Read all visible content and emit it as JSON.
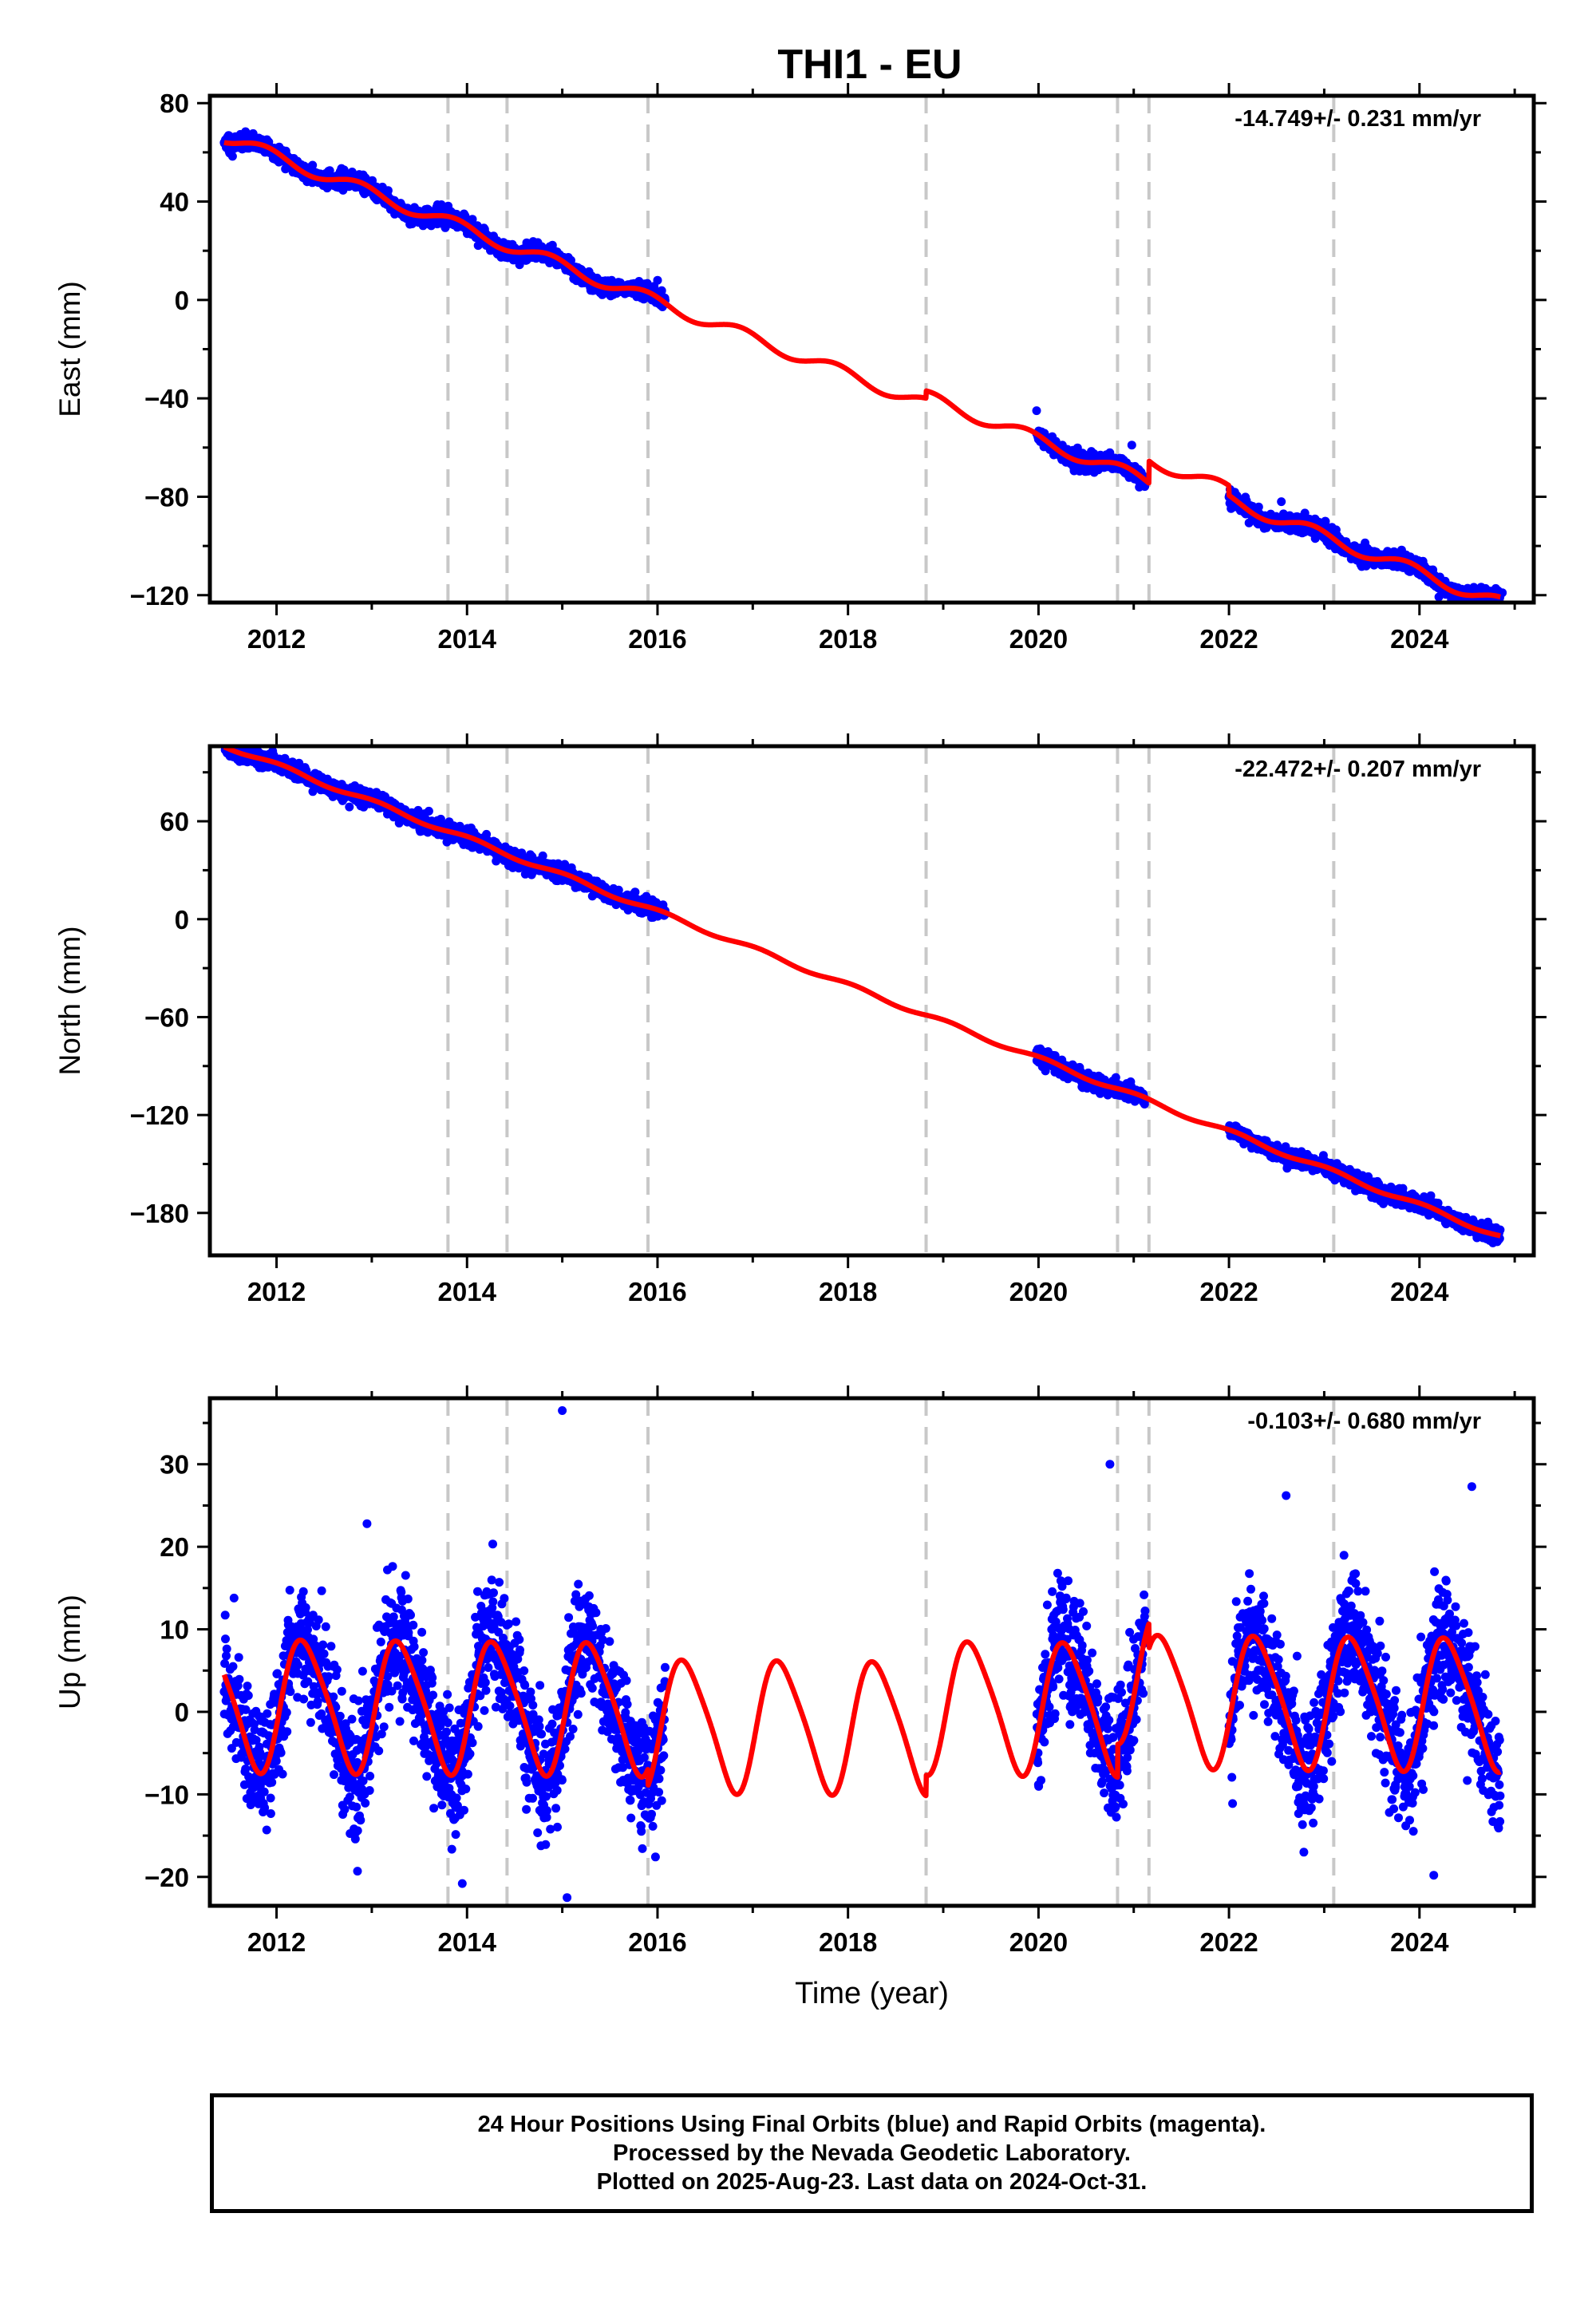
{
  "title": "THI1 - EU",
  "colors": {
    "points": "#0000ff",
    "model": "#ff0000",
    "steps": "#c8c8c8",
    "frame": "#000000"
  },
  "footer": {
    "line1": "24 Hour Positions Using Final Orbits (blue) and Rapid Orbits (magenta).",
    "line2": "Processed by the Nevada Geodetic Laboratory.",
    "line3": "Plotted on 2025-Aug-23. Last data on 2024-Oct-31."
  },
  "chart_data": [
    {
      "type": "scatter",
      "ylabel": "East (mm)",
      "rate_text": "-14.749+/- 0.231 mm/yr",
      "xlim": [
        2011.3,
        2025.2
      ],
      "ylim": [
        -123,
        83
      ],
      "xticks": [
        2012,
        2014,
        2016,
        2018,
        2020,
        2022,
        2024
      ],
      "yticks": [
        80,
        40,
        0,
        -40,
        -80,
        -120
      ],
      "step_lines": [
        2013.8,
        2014.42,
        2015.9,
        2018.82,
        2020.83,
        2021.16,
        2023.1
      ],
      "data_ranges": [
        [
          2011.45,
          2016.08
        ],
        [
          2019.98,
          2021.12
        ],
        [
          2022.0,
          2024.85
        ]
      ],
      "model": {
        "intercept": -0.8,
        "ref_year": 2016,
        "rate": -14.749,
        "annual_amp": 2.6,
        "annual_phase": 2.35,
        "seasonal_amp": 0.0,
        "steps": [
          {
            "year": 2018.82,
            "offset": 3.0
          },
          {
            "year": 2021.16,
            "offset": 9.0
          },
          {
            "year": 2022.0,
            "offset": -4.0
          }
        ]
      },
      "scatter": {
        "noise": 1.6,
        "outliers": [
          [
            2016.0,
            8
          ],
          [
            2019.98,
            -45
          ],
          [
            2020.98,
            -59
          ],
          [
            2021.02,
            -70
          ],
          [
            2022.55,
            -82
          ],
          [
            2024.87,
            -119
          ]
        ]
      }
    },
    {
      "type": "scatter",
      "ylabel": "North (mm)",
      "rate_text": "-22.472+/- 0.207 mm/yr",
      "xlim": [
        2011.3,
        2025.2
      ],
      "ylim": [
        -206,
        106
      ],
      "xticks": [
        2012,
        2014,
        2016,
        2018,
        2020,
        2022,
        2024
      ],
      "yticks": [
        60,
        0,
        -60,
        -120,
        -180
      ],
      "step_lines": [
        2013.8,
        2014.42,
        2015.9,
        2018.82,
        2020.83,
        2021.16,
        2023.1
      ],
      "data_ranges": [
        [
          2011.45,
          2016.08
        ],
        [
          2019.98,
          2021.12
        ],
        [
          2022.0,
          2024.85
        ]
      ],
      "model": {
        "intercept": 4.5,
        "ref_year": 2016,
        "rate": -22.472,
        "annual_amp": 1.4,
        "annual_phase": 1.2,
        "seasonal_amp": 0.0,
        "steps": []
      },
      "scatter": {
        "noise": 2.4,
        "outliers": [
          [
            2011.48,
            103
          ],
          [
            2020.97,
            -105
          ],
          [
            2022.05,
            -132
          ]
        ]
      }
    },
    {
      "type": "scatter",
      "ylabel": "Up (mm)",
      "xlabel": "Time (year)",
      "rate_text": "-0.103+/- 0.680 mm/yr",
      "xlim": [
        2011.3,
        2025.2
      ],
      "ylim": [
        -23.5,
        38
      ],
      "xticks": [
        2012,
        2014,
        2016,
        2018,
        2020,
        2022,
        2024
      ],
      "yticks": [
        30,
        20,
        10,
        0,
        -10,
        -20
      ],
      "step_lines": [
        2013.8,
        2014.42,
        2015.9,
        2018.82,
        2020.83,
        2021.16,
        2023.1
      ],
      "data_ranges": [
        [
          2011.45,
          2016.08
        ],
        [
          2019.98,
          2021.12
        ],
        [
          2022.0,
          2024.85
        ]
      ],
      "model": {
        "intercept": 0.5,
        "ref_year": 2016,
        "rate": -0.103,
        "annual_amp": 7.8,
        "annual_phase": -0.3,
        "seasonal_amp": 1.2,
        "steps": [
          {
            "year": 2015.9,
            "offset": -2.0
          },
          {
            "year": 2018.82,
            "offset": 2.5
          },
          {
            "year": 2020.83,
            "offset": 4.0
          },
          {
            "year": 2021.16,
            "offset": -3.0
          }
        ]
      },
      "scatter": {
        "noise": 3.6,
        "outliers": [
          [
            2015.0,
            36.5
          ],
          [
            2012.95,
            22.8
          ],
          [
            2020.75,
            30.0
          ],
          [
            2022.6,
            26.2
          ],
          [
            2024.55,
            27.3
          ],
          [
            2013.95,
            -20.8
          ],
          [
            2015.05,
            -22.5
          ],
          [
            2024.15,
            -19.8
          ],
          [
            2012.85,
            -19.3
          ]
        ]
      }
    }
  ]
}
